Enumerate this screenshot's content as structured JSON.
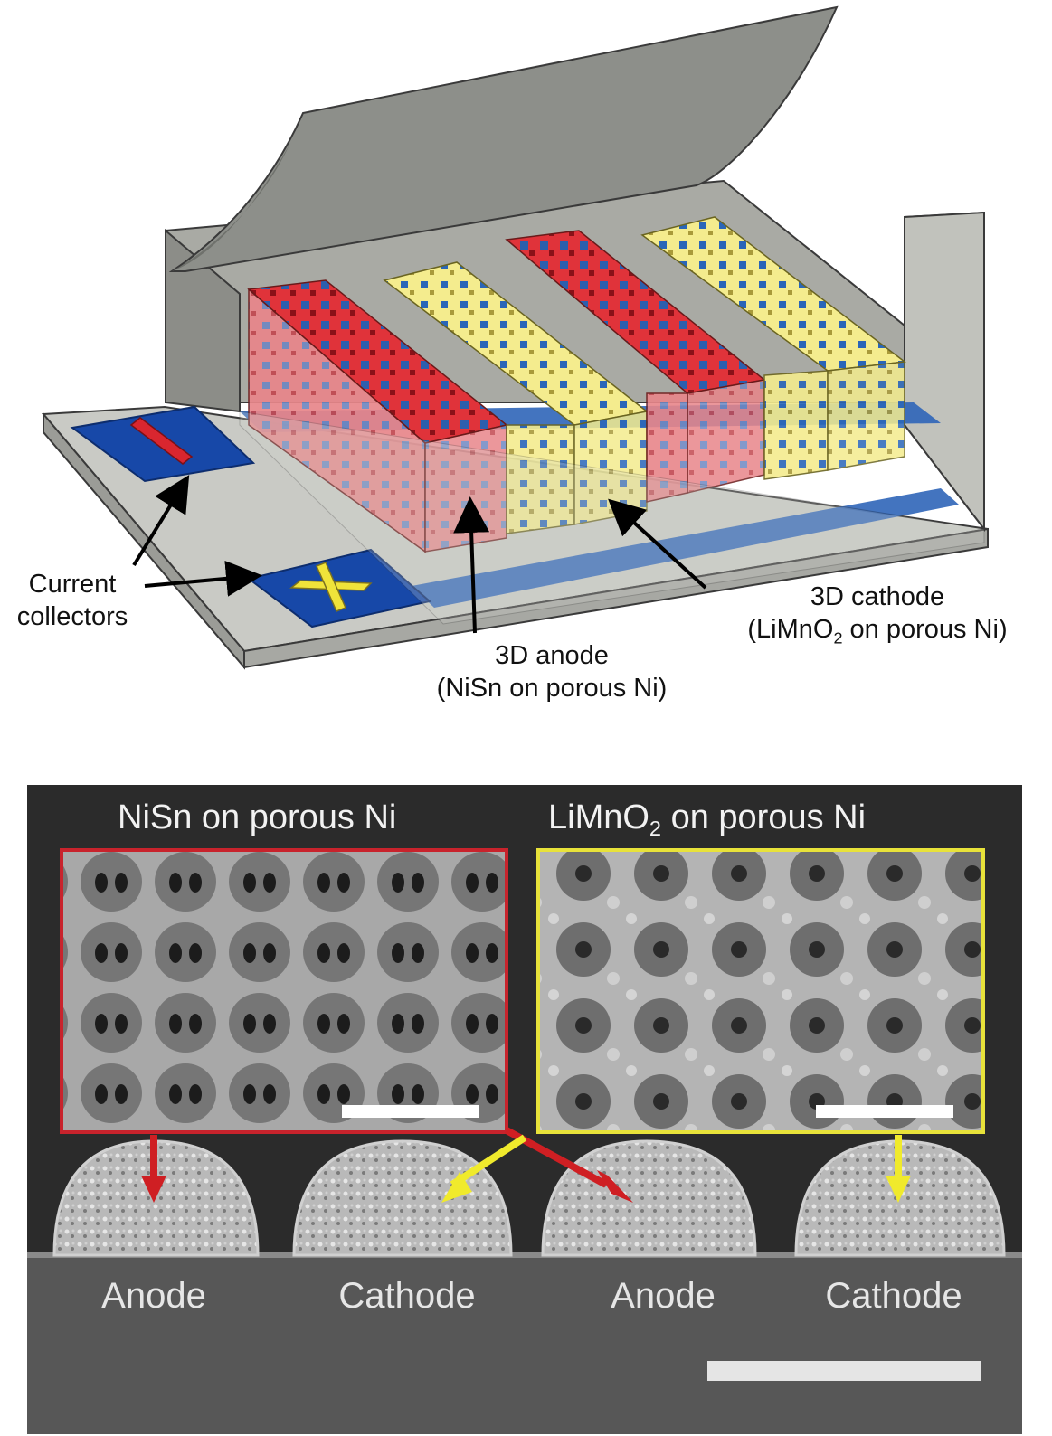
{
  "diagram": {
    "labels": {
      "current_collectors": [
        "Current",
        "collectors"
      ],
      "anode": {
        "title": "3D anode",
        "detail": "(NiSn on porous Ni)"
      },
      "cathode": {
        "title": "3D cathode",
        "detail_pre": "(LiMnO",
        "detail_sub": "2",
        "detail_post": " on porous Ni)"
      }
    },
    "symbols": {
      "negative": "−",
      "positive": "+"
    },
    "colors": {
      "anode": "#d9262f",
      "cathode": "#f5ec8c",
      "pore": "#2a66b8",
      "collector": "#1748a8",
      "housing": "#b9bab4",
      "lid": "#8f918b"
    }
  },
  "micrograph": {
    "inset_left_title": "NiSn on porous Ni",
    "inset_right_title_pre": "LiMnO",
    "inset_right_title_sub": "2",
    "inset_right_title_post": " on porous Ni",
    "electrode_labels": [
      "Anode",
      "Cathode",
      "Anode",
      "Cathode"
    ],
    "colors": {
      "anode_frame": "#c8232c",
      "cathode_frame": "#e8e23a",
      "background": "#2b2b2b"
    }
  }
}
